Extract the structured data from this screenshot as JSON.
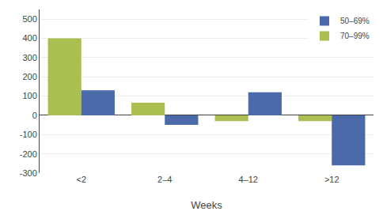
{
  "chart_data": {
    "type": "bar",
    "categories": [
      "<2",
      "2–4",
      "4–12",
      ">12"
    ],
    "series": [
      {
        "name": "70–99%",
        "color": "#aabf50",
        "values": [
          400,
          65,
          -30,
          -30
        ]
      },
      {
        "name": "50–69%",
        "color": "#4a6aaa",
        "values": [
          130,
          -50,
          120,
          -260
        ]
      }
    ],
    "xlabel": "Weeks",
    "ylim": [
      -300,
      550
    ],
    "yticks": [
      -300,
      -200,
      -100,
      0,
      100,
      200,
      300,
      400,
      500
    ],
    "grid": true,
    "legend": "upper right"
  }
}
